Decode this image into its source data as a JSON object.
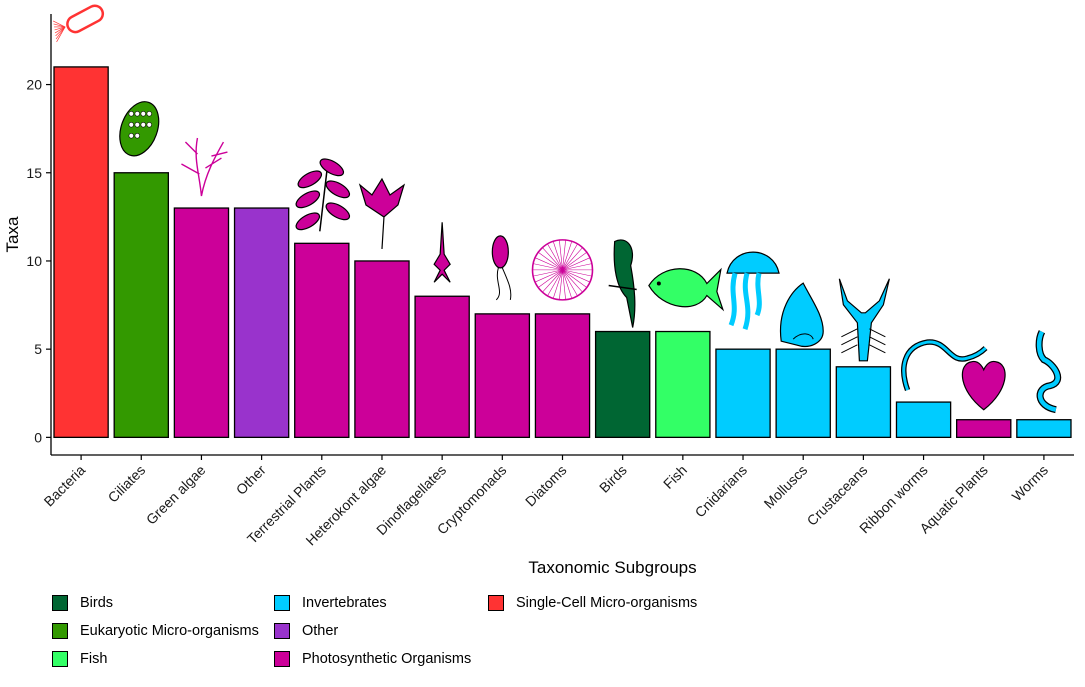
{
  "chart_data": {
    "type": "bar",
    "xlabel": "Taxonomic Subgroups",
    "ylabel": "Taxa",
    "ylim": [
      -1,
      24
    ],
    "yticks": [
      0,
      5,
      10,
      15,
      20
    ],
    "grid": false,
    "legend_position": "bottom-left",
    "categories": [
      "Bacteria",
      "Ciliates",
      "Green algae",
      "Other",
      "Terrestrial Plants",
      "Heterokont algae",
      "Dinoflagellates",
      "Cryptomonads",
      "Diatoms",
      "Birds",
      "Fish",
      "Cnidarians",
      "Molluscs",
      "Crustaceans",
      "Ribbon worms",
      "Aquatic Plants",
      "Worms"
    ],
    "values": [
      21,
      15,
      13,
      13,
      11,
      10,
      8,
      7,
      7,
      6,
      6,
      5,
      5,
      4,
      2,
      1,
      1
    ],
    "groups": [
      "Single-Cell Micro-organisms",
      "Eukaryotic Micro-organisms",
      "Photosynthetic Organisms",
      "Other",
      "Photosynthetic Organisms",
      "Photosynthetic Organisms",
      "Photosynthetic Organisms",
      "Photosynthetic Organisms",
      "Photosynthetic Organisms",
      "Birds",
      "Fish",
      "Invertebrates",
      "Invertebrates",
      "Invertebrates",
      "Invertebrates",
      "Photosynthetic Organisms",
      "Invertebrates"
    ],
    "bar_icons": [
      "bacterium-icon",
      "ciliate-icon",
      "green-alga-icon",
      "",
      "leaf-branch-icon",
      "seaweed-icon",
      "dinoflagellate-icon",
      "cryptomonad-icon",
      "diatom-icon",
      "parrot-icon",
      "fish-icon",
      "jellyfish-icon",
      "snail-shell-icon",
      "crayfish-icon",
      "ribbon-worm-icon",
      "aquatic-leaf-icon",
      "worm-icon"
    ],
    "legend": [
      {
        "name": "Birds",
        "color": "#006633"
      },
      {
        "name": "Eukaryotic Micro-organisms",
        "color": "#339900"
      },
      {
        "name": "Fish",
        "color": "#33FF66"
      },
      {
        "name": "Invertebrates",
        "color": "#00CCFF"
      },
      {
        "name": "Other",
        "color": "#9933CC"
      },
      {
        "name": "Photosynthetic Organisms",
        "color": "#CC0099"
      },
      {
        "name": "Single-Cell Micro-organisms",
        "color": "#FF3333"
      }
    ]
  }
}
